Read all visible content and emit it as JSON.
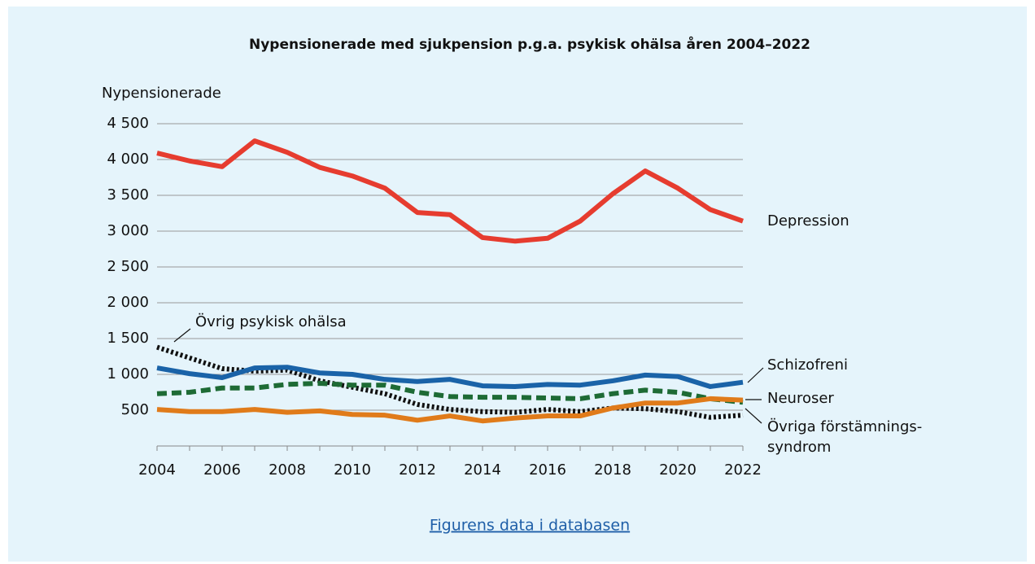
{
  "chart_data": {
    "type": "line",
    "title": "Nypensionerade med sjukpension p.g.a. psykisk ohälsa åren 2004–2022",
    "y_label": "Nypensionerade",
    "x": [
      2004,
      2005,
      2006,
      2007,
      2008,
      2009,
      2010,
      2011,
      2012,
      2013,
      2014,
      2015,
      2016,
      2017,
      2018,
      2019,
      2020,
      2021,
      2022
    ],
    "xlim": [
      2004,
      2022
    ],
    "xticks": [
      2004,
      2006,
      2008,
      2010,
      2012,
      2014,
      2016,
      2018,
      2020,
      2022
    ],
    "ylim": [
      0,
      4500
    ],
    "yticks": [
      {
        "value": 500,
        "label": "500"
      },
      {
        "value": 1000,
        "label": "1 000"
      },
      {
        "value": 1500,
        "label": "1 500"
      },
      {
        "value": 2000,
        "label": "2 000"
      },
      {
        "value": 2500,
        "label": "2 500"
      },
      {
        "value": 3000,
        "label": "3 000"
      },
      {
        "value": 3500,
        "label": "3 500"
      },
      {
        "value": 4000,
        "label": "4 000"
      },
      {
        "value": 4500,
        "label": "4 500"
      }
    ],
    "grid": true,
    "series": [
      {
        "name": "Depression",
        "color": "#e63c2f",
        "dash": "solid",
        "values": [
          4090,
          3980,
          3900,
          4260,
          4100,
          3890,
          3770,
          3600,
          3260,
          3230,
          2910,
          2860,
          2900,
          3140,
          3520,
          3840,
          3600,
          3300,
          3140
        ]
      },
      {
        "name": "Schizofreni",
        "color": "#1a63a8",
        "dash": "solid",
        "values": [
          1090,
          1010,
          955,
          1090,
          1100,
          1020,
          1000,
          930,
          900,
          930,
          840,
          830,
          860,
          850,
          910,
          990,
          970,
          830,
          890
        ]
      },
      {
        "name": "Neuroser",
        "color": "#e07b1a",
        "dash": "solid",
        "values": [
          510,
          480,
          480,
          510,
          470,
          490,
          440,
          430,
          360,
          420,
          350,
          390,
          420,
          420,
          530,
          600,
          600,
          660,
          640
        ]
      },
      {
        "name": "Övrig psykisk ohälsa",
        "color": "#111111",
        "dash": "dotted",
        "values": [
          1380,
          1230,
          1080,
          1045,
          1060,
          910,
          820,
          730,
          580,
          510,
          480,
          470,
          510,
          480,
          530,
          520,
          480,
          400,
          430
        ]
      },
      {
        "label_lines": [
          "Övriga förstämnings-",
          "syndrom"
        ],
        "color": "#1e6b35",
        "dash": "dashed",
        "values": [
          730,
          750,
          810,
          810,
          860,
          875,
          850,
          850,
          750,
          690,
          680,
          680,
          670,
          660,
          730,
          780,
          750,
          660,
          610
        ]
      }
    ],
    "link": "Figurens data i databasen"
  }
}
